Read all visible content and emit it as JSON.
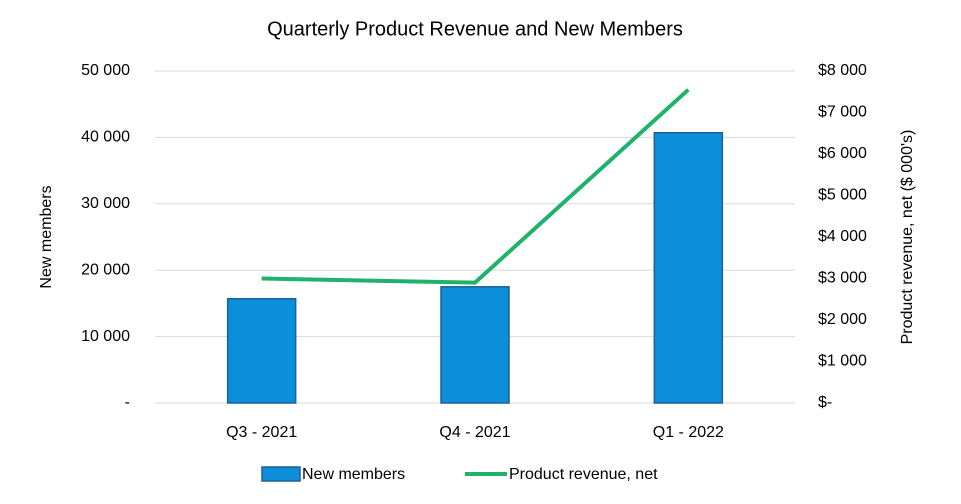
{
  "chart_data": {
    "type": "bar_line",
    "title": "Quarterly Product Revenue and New Members",
    "y_label": "New members",
    "y2_label": "Product revenue, net ($ 000's)",
    "categories": [
      "Q3 - 2021",
      "Q4 - 2021",
      "Q1 - 2022"
    ],
    "series": [
      {
        "name": "New members",
        "type": "bar",
        "color": "#0b8fdb",
        "values": [
          15700,
          17500,
          40700
        ]
      },
      {
        "name": "Product revenue, net",
        "type": "line",
        "axis": "y2",
        "color": "#1db36b",
        "values": [
          3000,
          2900,
          7550
        ]
      }
    ],
    "ylim": [
      0,
      50000
    ],
    "yticks": [
      {
        "value": 0,
        "label": "-"
      },
      {
        "value": 10000,
        "label": "10 000"
      },
      {
        "value": 20000,
        "label": "20 000"
      },
      {
        "value": 30000,
        "label": "30 000"
      },
      {
        "value": 40000,
        "label": "40 000"
      },
      {
        "value": 50000,
        "label": "50 000"
      }
    ],
    "y2lim": [
      0,
      8000
    ],
    "y2ticks": [
      {
        "value": 0,
        "label": "$-"
      },
      {
        "value": 1000,
        "label": "$1 000"
      },
      {
        "value": 2000,
        "label": "$2 000"
      },
      {
        "value": 3000,
        "label": "$3 000"
      },
      {
        "value": 4000,
        "label": "$4 000"
      },
      {
        "value": 5000,
        "label": "$5 000"
      },
      {
        "value": 6000,
        "label": "$6 000"
      },
      {
        "value": 7000,
        "label": "$7 000"
      },
      {
        "value": 8000,
        "label": "$8 000"
      }
    ],
    "grid": true,
    "legend": "bottom"
  }
}
